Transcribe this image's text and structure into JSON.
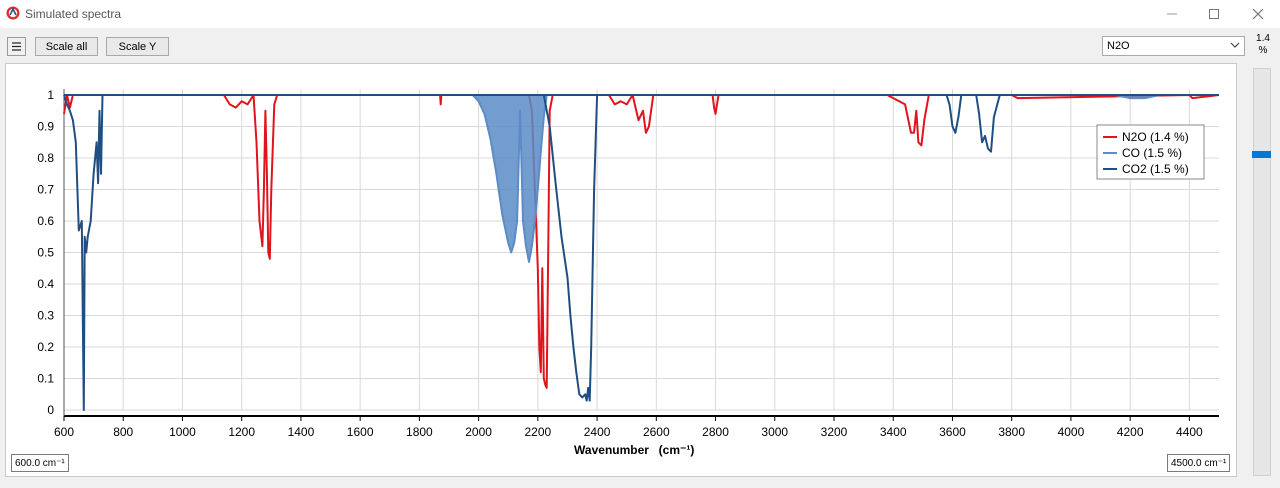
{
  "window": {
    "title": "Simulated spectra",
    "minimize_icon": "minimize-icon",
    "maximize_icon": "maximize-icon",
    "close_icon": "close-icon"
  },
  "toolbar": {
    "menu_icon": "hamburger-menu-icon",
    "scale_all_label": "Scale all",
    "scale_y_label": "Scale Y",
    "gas_select_value": "N2O",
    "concentration_label": "1.4\n%"
  },
  "range": {
    "min_label": "600.0 cm⁻¹",
    "max_label": "4500.0 cm⁻¹"
  },
  "colors": {
    "N2O": "#e0141c",
    "CO": "#5b8cc6",
    "CO2": "#1f4e82",
    "slider_thumb": "#0078d7"
  },
  "chart_data": {
    "type": "line",
    "title": "",
    "xlabel": "Wavenumber",
    "xlabel_unit": "(cm⁻¹)",
    "ylabel": "",
    "xlim": [
      600,
      4500
    ],
    "ylim": [
      0,
      1
    ],
    "grid": true,
    "legend_position": "top-right",
    "x_ticks": [
      600,
      800,
      1000,
      1200,
      1400,
      1600,
      1800,
      2000,
      2200,
      2400,
      2600,
      2800,
      3000,
      3200,
      3400,
      3600,
      3800,
      4000,
      4200,
      4400
    ],
    "y_ticks": [
      0,
      0.1,
      0.2,
      0.3,
      0.4,
      0.5,
      0.6,
      0.7,
      0.8,
      0.9,
      1
    ],
    "series": [
      {
        "name": "N2O (1.4 %)",
        "x": [
          600,
          610,
          620,
          630,
          640,
          1140,
          1160,
          1180,
          1200,
          1220,
          1240,
          1250,
          1260,
          1270,
          1275,
          1280,
          1285,
          1290,
          1295,
          1300,
          1310,
          1320,
          1870,
          1872,
          1874,
          2170,
          2180,
          2190,
          2200,
          2205,
          2210,
          2215,
          2220,
          2225,
          2230,
          2235,
          2240,
          2250,
          2440,
          2460,
          2480,
          2500,
          2520,
          2540,
          2555,
          2565,
          2575,
          2590,
          2790,
          2795,
          2800,
          2805,
          2810,
          3380,
          3400,
          3420,
          3440,
          3460,
          3470,
          3478,
          3485,
          3495,
          3505,
          3520,
          3800,
          3820,
          4400,
          4410,
          4500
        ],
        "y": [
          0.94,
          1.0,
          0.96,
          1.0,
          1.0,
          1.0,
          0.97,
          0.96,
          0.98,
          0.97,
          1.0,
          0.85,
          0.6,
          0.52,
          0.7,
          0.95,
          0.75,
          0.5,
          0.48,
          0.7,
          0.97,
          1.0,
          1.0,
          0.97,
          1.0,
          1.0,
          0.95,
          0.7,
          0.45,
          0.2,
          0.12,
          0.45,
          0.1,
          0.08,
          0.07,
          0.5,
          0.95,
          1.0,
          1.0,
          0.97,
          0.98,
          0.97,
          1.0,
          0.92,
          0.95,
          0.88,
          0.9,
          1.0,
          1.0,
          0.96,
          0.94,
          0.97,
          1.0,
          1.0,
          0.99,
          0.98,
          0.97,
          0.88,
          0.88,
          0.95,
          0.85,
          0.84,
          0.92,
          1.0,
          1.0,
          0.99,
          1.0,
          0.99,
          1.0
        ]
      },
      {
        "name": "CO (1.5 %)",
        "x": [
          1980,
          2000,
          2020,
          2040,
          2060,
          2080,
          2100,
          2110,
          2120,
          2130,
          2140,
          2150,
          2160,
          2170,
          2180,
          2190,
          2200,
          2210,
          2220,
          2230,
          4150,
          4200,
          4250,
          4300
        ],
        "y": [
          1.0,
          0.98,
          0.94,
          0.86,
          0.75,
          0.62,
          0.53,
          0.5,
          0.53,
          0.6,
          0.95,
          0.6,
          0.52,
          0.47,
          0.52,
          0.6,
          0.7,
          0.82,
          0.93,
          1.0,
          1.0,
          0.99,
          0.99,
          1.0
        ]
      },
      {
        "name": "CO2 (1.5 %)",
        "x": [
          600,
          610,
          620,
          630,
          640,
          650,
          660,
          667,
          670,
          675,
          680,
          690,
          700,
          710,
          715,
          720,
          725,
          730,
          740,
          2220,
          2240,
          2260,
          2280,
          2300,
          2310,
          2320,
          2330,
          2340,
          2350,
          2360,
          2365,
          2370,
          2375,
          2380,
          2390,
          2400,
          3580,
          3590,
          3600,
          3610,
          3620,
          3630,
          3680,
          3690,
          3700,
          3710,
          3720,
          3730,
          3740,
          3760,
          4500
        ],
        "y": [
          1.0,
          0.97,
          0.95,
          0.92,
          0.85,
          0.57,
          0.6,
          0.0,
          0.55,
          0.5,
          0.55,
          0.6,
          0.75,
          0.85,
          0.72,
          0.95,
          0.75,
          1.0,
          1.0,
          1.0,
          0.9,
          0.72,
          0.55,
          0.42,
          0.3,
          0.2,
          0.12,
          0.05,
          0.04,
          0.05,
          0.03,
          0.07,
          0.03,
          0.2,
          0.7,
          1.0,
          1.0,
          0.97,
          0.9,
          0.88,
          0.93,
          1.0,
          1.0,
          0.94,
          0.85,
          0.87,
          0.83,
          0.82,
          0.93,
          1.0,
          1.0
        ]
      }
    ]
  }
}
